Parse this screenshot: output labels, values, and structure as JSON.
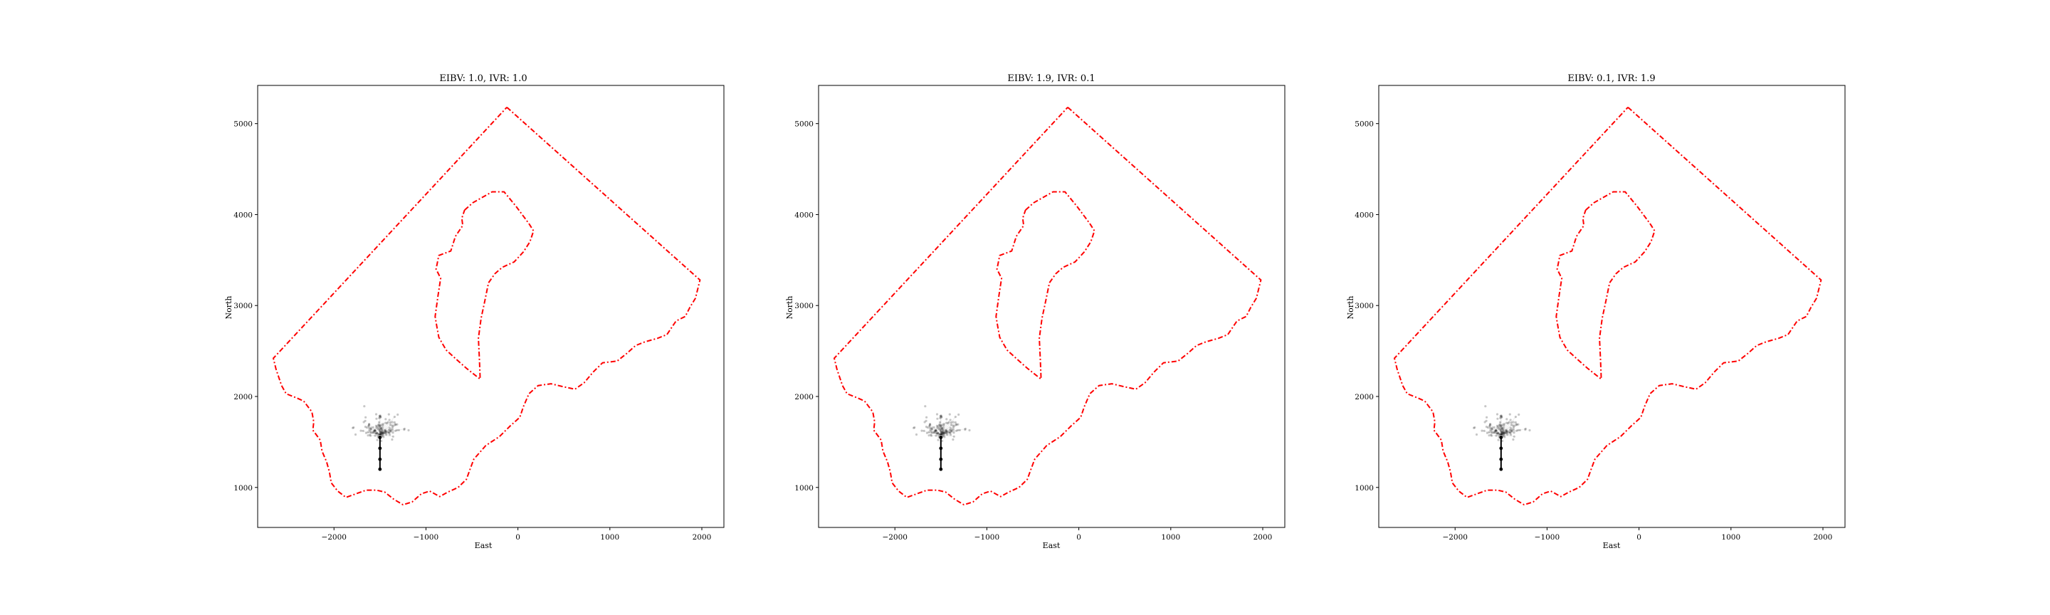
{
  "figure": {
    "background": "#ffffff",
    "boundary_color": "#ff0000",
    "cloud_color": "#000000",
    "path_color": "#000000"
  },
  "shared": {
    "outer_boundary": [
      [
        -120,
        5180
      ],
      [
        1980,
        3280
      ],
      [
        1930,
        3080
      ],
      [
        1870,
        2980
      ],
      [
        1820,
        2880
      ],
      [
        1720,
        2830
      ],
      [
        1620,
        2680
      ],
      [
        1520,
        2640
      ],
      [
        1380,
        2600
      ],
      [
        1280,
        2560
      ],
      [
        1180,
        2470
      ],
      [
        1080,
        2390
      ],
      [
        920,
        2370
      ],
      [
        820,
        2270
      ],
      [
        720,
        2150
      ],
      [
        620,
        2080
      ],
      [
        480,
        2110
      ],
      [
        360,
        2140
      ],
      [
        220,
        2120
      ],
      [
        120,
        2030
      ],
      [
        60,
        1890
      ],
      [
        20,
        1770
      ],
      [
        -80,
        1680
      ],
      [
        -200,
        1560
      ],
      [
        -350,
        1460
      ],
      [
        -480,
        1310
      ],
      [
        -520,
        1200
      ],
      [
        -560,
        1090
      ],
      [
        -650,
        1000
      ],
      [
        -760,
        950
      ],
      [
        -850,
        900
      ],
      [
        -960,
        960
      ],
      [
        -1050,
        930
      ],
      [
        -1150,
        840
      ],
      [
        -1250,
        810
      ],
      [
        -1350,
        870
      ],
      [
        -1450,
        950
      ],
      [
        -1540,
        970
      ],
      [
        -1650,
        970
      ],
      [
        -1760,
        930
      ],
      [
        -1870,
        890
      ],
      [
        -1960,
        960
      ],
      [
        -2030,
        1050
      ],
      [
        -2050,
        1170
      ],
      [
        -2080,
        1280
      ],
      [
        -2130,
        1400
      ],
      [
        -2150,
        1520
      ],
      [
        -2230,
        1630
      ],
      [
        -2220,
        1720
      ],
      [
        -2240,
        1830
      ],
      [
        -2330,
        1950
      ],
      [
        -2420,
        1990
      ],
      [
        -2520,
        2030
      ],
      [
        -2570,
        2120
      ],
      [
        -2630,
        2300
      ],
      [
        -2660,
        2420
      ],
      [
        -120,
        5180
      ]
    ],
    "inner_boundary": [
      [
        -580,
        4050
      ],
      [
        -490,
        4130
      ],
      [
        -280,
        4250
      ],
      [
        -150,
        4250
      ],
      [
        -20,
        4090
      ],
      [
        120,
        3900
      ],
      [
        170,
        3820
      ],
      [
        130,
        3700
      ],
      [
        60,
        3590
      ],
      [
        -40,
        3480
      ],
      [
        -170,
        3420
      ],
      [
        -250,
        3350
      ],
      [
        -320,
        3250
      ],
      [
        -360,
        3050
      ],
      [
        -400,
        2860
      ],
      [
        -430,
        2640
      ],
      [
        -420,
        2430
      ],
      [
        -410,
        2190
      ],
      [
        -560,
        2310
      ],
      [
        -660,
        2400
      ],
      [
        -780,
        2510
      ],
      [
        -860,
        2650
      ],
      [
        -880,
        2760
      ],
      [
        -900,
        2880
      ],
      [
        -870,
        3100
      ],
      [
        -840,
        3300
      ],
      [
        -890,
        3400
      ],
      [
        -860,
        3550
      ],
      [
        -730,
        3600
      ],
      [
        -680,
        3760
      ],
      [
        -600,
        3880
      ],
      [
        -610,
        3960
      ],
      [
        -580,
        4050
      ]
    ],
    "path_nodes": [
      [
        -1500,
        1200
      ],
      [
        -1500,
        1310
      ],
      [
        -1500,
        1430
      ],
      [
        -1500,
        1550
      ]
    ],
    "cloud_center": [
      -1500,
      1580
    ]
  },
  "subplots": [
    {
      "title": "EIBV: 1.0, IVR: 1.0",
      "xlabel": "East",
      "ylabel": "North",
      "chart_data": {
        "type": "scatter",
        "title": "EIBV: 1.0, IVR: 1.0",
        "xlabel": "East",
        "ylabel": "North",
        "xlim": [
          -2830,
          2240
        ],
        "ylim": [
          560,
          5420
        ],
        "xticks": [
          -2000,
          -1000,
          0,
          1000,
          2000
        ],
        "xtick_labels": [
          "−2000",
          "−1000",
          "0",
          "1000",
          "2000"
        ],
        "yticks": [
          1000,
          2000,
          3000,
          4000,
          5000
        ],
        "ytick_labels": [
          "1000",
          "2000",
          "3000",
          "4000",
          "5000"
        ],
        "grid": false,
        "legend": "none",
        "series": [
          {
            "kind": "operational boundary",
            "style": "red dash-dot",
            "ref": "shared.outer_boundary"
          },
          {
            "kind": "obstacle",
            "style": "red dash-dot",
            "ref": "shared.inner_boundary"
          },
          {
            "kind": "trajectory",
            "style": "black line with dots",
            "ref": "shared.path_nodes"
          },
          {
            "kind": "candidate locations",
            "style": "translucent black markers",
            "center": [
              -1500,
              1580
            ]
          }
        ]
      }
    },
    {
      "title": "EIBV: 1.9, IVR: 0.1",
      "xlabel": "East",
      "ylabel": "North",
      "chart_data": {
        "type": "scatter",
        "title": "EIBV: 1.9, IVR: 0.1",
        "xlabel": "East",
        "ylabel": "North",
        "xlim": [
          -2830,
          2240
        ],
        "ylim": [
          560,
          5420
        ],
        "xticks": [
          -2000,
          -1000,
          0,
          1000,
          2000
        ],
        "xtick_labels": [
          "−2000",
          "−1000",
          "0",
          "1000",
          "2000"
        ],
        "yticks": [
          1000,
          2000,
          3000,
          4000,
          5000
        ],
        "ytick_labels": [
          "1000",
          "2000",
          "3000",
          "4000",
          "5000"
        ],
        "grid": false,
        "legend": "none",
        "series": [
          {
            "kind": "operational boundary",
            "style": "red dash-dot",
            "ref": "shared.outer_boundary"
          },
          {
            "kind": "obstacle",
            "style": "red dash-dot",
            "ref": "shared.inner_boundary"
          },
          {
            "kind": "trajectory",
            "style": "black line with dots",
            "ref": "shared.path_nodes"
          },
          {
            "kind": "candidate locations",
            "style": "translucent black markers",
            "center": [
              -1500,
              1580
            ]
          }
        ]
      }
    },
    {
      "title": "EIBV: 0.1, IVR: 1.9",
      "xlabel": "East",
      "ylabel": "North",
      "chart_data": {
        "type": "scatter",
        "title": "EIBV: 0.1, IVR: 1.9",
        "xlabel": "East",
        "ylabel": "North",
        "xlim": [
          -2830,
          2240
        ],
        "ylim": [
          560,
          5420
        ],
        "xticks": [
          -2000,
          -1000,
          0,
          1000,
          2000
        ],
        "xtick_labels": [
          "−2000",
          "−1000",
          "0",
          "1000",
          "2000"
        ],
        "yticks": [
          1000,
          2000,
          3000,
          4000,
          5000
        ],
        "ytick_labels": [
          "1000",
          "2000",
          "3000",
          "4000",
          "5000"
        ],
        "grid": false,
        "legend": "none",
        "series": [
          {
            "kind": "operational boundary",
            "style": "red dash-dot",
            "ref": "shared.outer_boundary"
          },
          {
            "kind": "obstacle",
            "style": "red dash-dot",
            "ref": "shared.inner_boundary"
          },
          {
            "kind": "trajectory",
            "style": "black line with dots",
            "ref": "shared.path_nodes"
          },
          {
            "kind": "candidate locations",
            "style": "translucent black markers",
            "center": [
              -1500,
              1580
            ]
          }
        ]
      }
    }
  ]
}
